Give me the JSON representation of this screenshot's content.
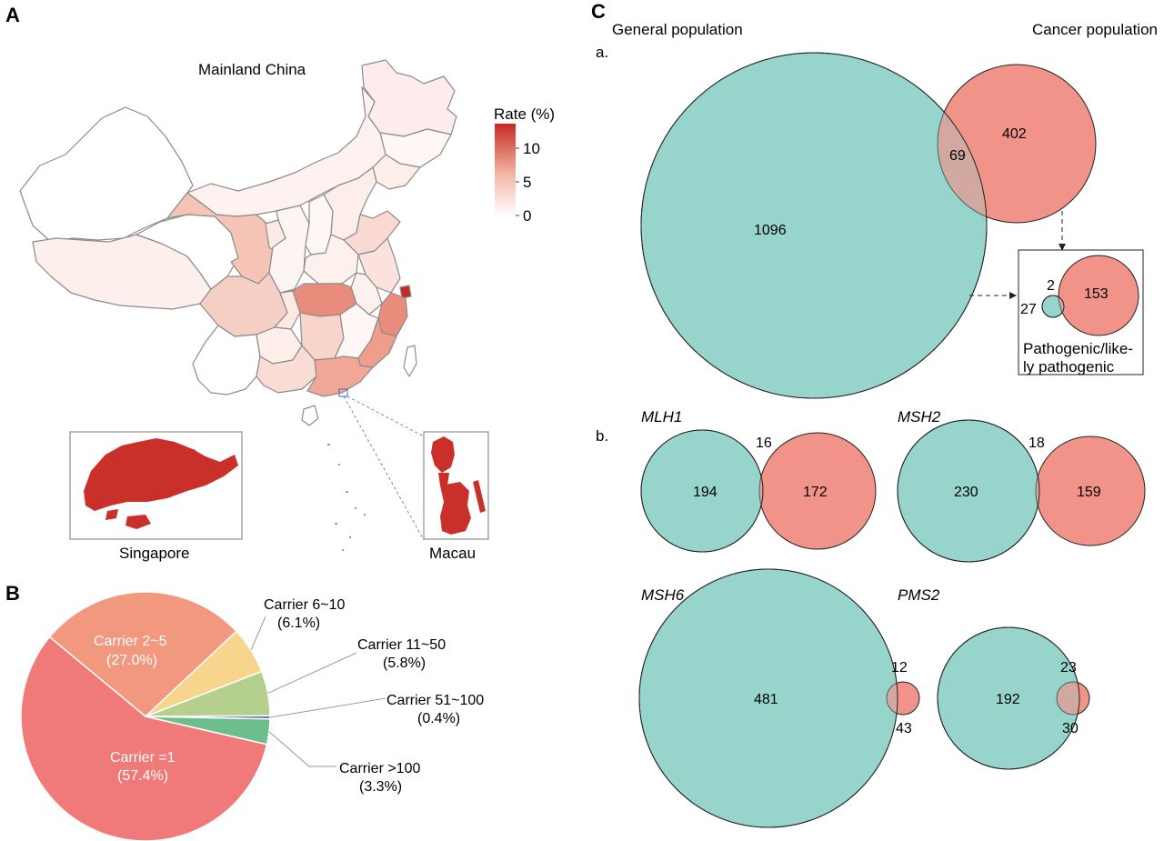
{
  "panels": {
    "a": "A",
    "b": "B",
    "c": "C"
  },
  "map": {
    "title": "Mainland China",
    "legend_title": "Rate (%)",
    "legend_ticks": [
      "10",
      "5",
      "0"
    ],
    "legend_colors": [
      "#ffffff",
      "#f2b7a6",
      "#c62a22"
    ],
    "insets": {
      "left": "Singapore",
      "right": "Macau"
    },
    "inset_color": "#c9302a"
  },
  "chart_data": [
    {
      "type": "pie",
      "panel": "B",
      "categories": [
        "Carrier =1",
        "Carrier 2~5",
        "Carrier 6~10",
        "Carrier 11~50",
        "Carrier 51~100",
        "Carrier >100"
      ],
      "values": [
        57.4,
        27.0,
        6.1,
        5.8,
        0.4,
        3.3
      ],
      "value_labels": [
        "(57.4%)",
        "(27.0%)",
        "(6.1%)",
        "(5.8%)",
        "(0.4%)",
        "(3.3%)"
      ],
      "colors": [
        "#f07979",
        "#f2987f",
        "#f7d58d",
        "#b5cf8c",
        "#5a5aa0",
        "#6cbf8c"
      ]
    },
    {
      "type": "venn",
      "panel": "C",
      "series": [
        "General population",
        "Cancer population"
      ],
      "colors": [
        "#97d5cc",
        "#f29389"
      ],
      "sets": [
        {
          "label": "a.",
          "only_general": "1096",
          "overlap": "69",
          "only_cancer": "402"
        },
        {
          "label": "Pathogenic/like-ly pathogenic",
          "only_general": "27",
          "overlap": "2",
          "only_cancer": "153"
        },
        {
          "label": "MLH1",
          "only_general": "194",
          "overlap": "16",
          "only_cancer": "172"
        },
        {
          "label": "MSH2",
          "only_general": "230",
          "overlap": "18",
          "only_cancer": "159"
        },
        {
          "label": "MSH6",
          "only_general": "481",
          "overlap": "12",
          "only_cancer": "43"
        },
        {
          "label": "PMS2",
          "only_general": "192",
          "overlap": "23",
          "only_cancer": "30"
        }
      ],
      "sub_b_label": "b.",
      "pathogenic_label_lines": [
        "Pathogenic/like-",
        "ly pathogenic"
      ]
    }
  ]
}
